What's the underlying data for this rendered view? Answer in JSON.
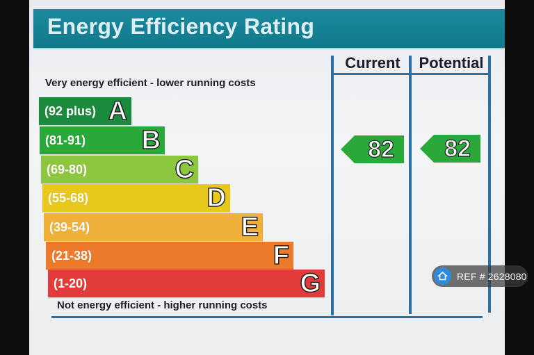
{
  "title": "Energy Efficiency Rating",
  "top_caption": "Very energy efficient - lower running costs",
  "bottom_caption": "Not energy efficient - higher running costs",
  "columns": {
    "current": "Current",
    "potential": "Potential"
  },
  "bands": [
    {
      "range": "(92 plus)",
      "letter": "A",
      "color": "#1c8a3c"
    },
    {
      "range": "(81-91)",
      "letter": "B",
      "color": "#2aa83a"
    },
    {
      "range": "(69-80)",
      "letter": "C",
      "color": "#8dc63f"
    },
    {
      "range": "(55-68)",
      "letter": "D",
      "color": "#e8c81d"
    },
    {
      "range": "(39-54)",
      "letter": "E",
      "color": "#f0b13a"
    },
    {
      "range": "(21-38)",
      "letter": "F",
      "color": "#ec7a2b"
    },
    {
      "range": "(1-20)",
      "letter": "G",
      "color": "#e23b3a"
    }
  ],
  "current_rating": {
    "value": "82",
    "band": "B",
    "color": "#2aa83a"
  },
  "potential_rating": {
    "value": "82",
    "band": "B",
    "color": "#2aa83a"
  },
  "ref_badge": {
    "icon": "home-icon",
    "text": "REF # 2628080"
  }
}
